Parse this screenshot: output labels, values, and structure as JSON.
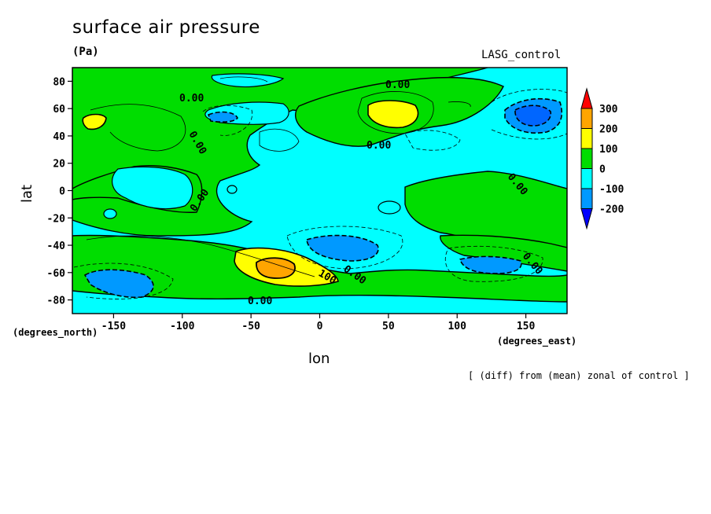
{
  "chart_data": {
    "type": "heatmap",
    "title": "surface air pressure",
    "units": "(Pa)",
    "run_label": "LASG_control",
    "xlabel": "lon",
    "ylabel": "lat",
    "x_units": "(degrees_east)",
    "y_units": "(degrees_north)",
    "note": "[ (diff) from (mean) zonal of control ]",
    "xlim": [
      -180,
      180
    ],
    "ylim": [
      -90,
      90
    ],
    "x_ticks": [
      -150,
      -100,
      -50,
      0,
      50,
      100,
      150
    ],
    "y_ticks": [
      80,
      60,
      40,
      20,
      0,
      -20,
      -40,
      -60,
      -80
    ],
    "x_tick_labels": [
      "-150",
      "-100",
      "-50",
      "0",
      "50",
      "100",
      "150"
    ],
    "y_tick_labels": [
      "80",
      "60",
      "40",
      "20",
      "0",
      "-20",
      "-40",
      "-60",
      "-80"
    ],
    "contour_labels": [
      "0.00",
      "0.00",
      "0.00",
      "0.00",
      "0.00",
      "0.00",
      "0.00",
      "0.00",
      "0.00",
      "100"
    ],
    "colorbar": {
      "labels": [
        "300",
        "200",
        "100",
        "0",
        "-100",
        "-200"
      ],
      "bands": [
        {
          "range": "200 to 300",
          "color": "#ffa500"
        },
        {
          "range": "100 to 200",
          "color": "#ffff00"
        },
        {
          "range": "0 to 100",
          "color": "#00dd00"
        },
        {
          "range": "-100 to 0",
          "color": "#00ffff"
        },
        {
          "range": "-200 to -100",
          "color": "#0099ff"
        }
      ],
      "over_color": "#ff0000",
      "under_color": "#0000ff"
    },
    "regions": [
      {
        "level": "-200 to -100",
        "lon": 155,
        "lat": 55
      },
      {
        "level": "-200 to -100",
        "lon": -145,
        "lat": -62
      },
      {
        "level": "-200 to -100",
        "lon": 20,
        "lat": -40
      },
      {
        "level": "-200 to -100",
        "lon": 135,
        "lat": -55
      },
      {
        "level": "-200 to -100",
        "lon": -75,
        "lat": 55
      },
      {
        "level": "100 to 200",
        "lon": 50,
        "lat": 55
      },
      {
        "level": "100 to 200",
        "lon": -165,
        "lat": 50
      },
      {
        "level": "200 to 300",
        "lon": -35,
        "lat": -58
      }
    ]
  }
}
